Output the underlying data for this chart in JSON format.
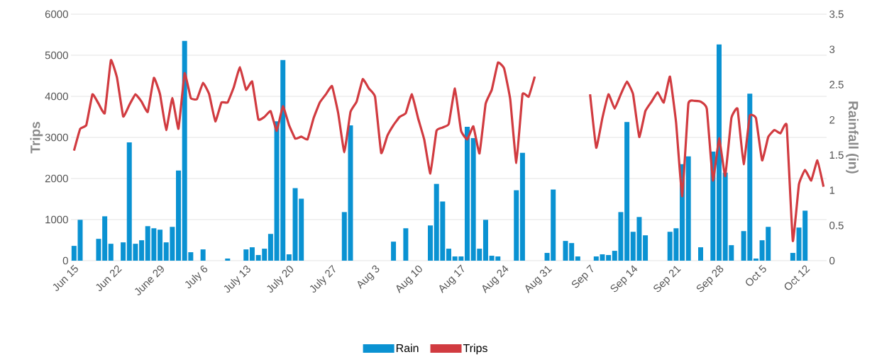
{
  "chart_data": {
    "type": "line",
    "ylabel": "Trips",
    "y2label": "Rainfall (in)",
    "categories": [
      "Jun 15",
      null,
      null,
      null,
      null,
      null,
      null,
      "Jun 22",
      null,
      null,
      null,
      null,
      null,
      null,
      "June 29",
      null,
      null,
      null,
      null,
      null,
      null,
      "July 6",
      null,
      null,
      null,
      null,
      null,
      null,
      "July 13",
      null,
      null,
      null,
      null,
      null,
      null,
      "July 20",
      null,
      null,
      null,
      null,
      null,
      null,
      "July 27",
      null,
      null,
      null,
      null,
      null,
      null,
      "Aug 3",
      null,
      null,
      null,
      null,
      null,
      null,
      "Aug 10",
      null,
      null,
      null,
      null,
      null,
      null,
      "Aug 17",
      null,
      null,
      null,
      null,
      null,
      null,
      "Aug 24",
      null,
      null,
      null,
      null,
      null,
      null,
      "Aug 31",
      null,
      null,
      null,
      null,
      null,
      null,
      "Sep 7",
      null,
      null,
      null,
      null,
      null,
      null,
      "Sep 14",
      null,
      null,
      null,
      null,
      null,
      null,
      "Sep 21",
      null,
      null,
      null,
      null,
      null,
      null,
      "Sep 28",
      null,
      null,
      null,
      null,
      null,
      null,
      "Oct 5",
      null,
      null,
      null,
      null,
      null,
      null,
      "Oct 12",
      null,
      null,
      null
    ],
    "series": [
      {
        "name": "Rain",
        "type": "bar",
        "axis": "y2",
        "color": "#0a92d2",
        "values": [
          0.21,
          0.58,
          0,
          0,
          0.31,
          0.63,
          0.24,
          0,
          0.26,
          1.68,
          0.24,
          0.29,
          0.49,
          0.46,
          0.44,
          0.26,
          0.48,
          1.28,
          3.12,
          0.12,
          0,
          0.16,
          0,
          0,
          0,
          0.03,
          0,
          0,
          0.16,
          0.19,
          0.08,
          0.17,
          0.38,
          1.98,
          2.85,
          0.09,
          1.03,
          0.88,
          0,
          0,
          0,
          0,
          0,
          0,
          0.69,
          1.92,
          0,
          0,
          0,
          0,
          0,
          0,
          0.27,
          0,
          0.46,
          0,
          0,
          0,
          0.5,
          1.09,
          0.84,
          0.17,
          0.06,
          0.06,
          1.9,
          1.74,
          0.17,
          0.58,
          0.07,
          0.06,
          0,
          0,
          1.0,
          1.53,
          0,
          0,
          0,
          0.11,
          1.01,
          0,
          0.28,
          0.25,
          0.06,
          0,
          0,
          0.06,
          0.09,
          0.08,
          0.14,
          0.69,
          1.97,
          0.41,
          0.62,
          0.36,
          0,
          0,
          0,
          0.41,
          0.46,
          1.37,
          1.48,
          0,
          0.19,
          0,
          1.55,
          3.07,
          1.25,
          0.22,
          0,
          0.42,
          2.37,
          0.03,
          0.29,
          0.48,
          0,
          0,
          0,
          0.11,
          0.47,
          0.71,
          0,
          0,
          0
        ]
      },
      {
        "name": "Trips",
        "color": "#d13b40",
        "values": [
          2680,
          3210,
          3300,
          4050,
          3820,
          3590,
          4880,
          4450,
          3510,
          3790,
          4050,
          3870,
          3620,
          4450,
          4050,
          3180,
          3960,
          3210,
          4560,
          3960,
          3930,
          4330,
          4050,
          3390,
          3850,
          3850,
          4220,
          4710,
          4160,
          4360,
          3440,
          3500,
          3640,
          3160,
          3760,
          3300,
          2970,
          3020,
          2950,
          3470,
          3850,
          4050,
          4250,
          3590,
          2640,
          3620,
          3870,
          4420,
          4190,
          3990,
          2620,
          3040,
          3300,
          3500,
          3590,
          4050,
          3470,
          2950,
          2120,
          3160,
          3240,
          3330,
          4190,
          3160,
          2950,
          3270,
          2610,
          3820,
          4160,
          4820,
          4680,
          3930,
          2380,
          4050,
          3990,
          4480,
          null,
          null,
          null,
          null,
          null,
          null,
          null,
          null,
          4050,
          2750,
          3470,
          4050,
          3700,
          4050,
          4360,
          4050,
          3010,
          3640,
          3870,
          4100,
          3850,
          4480,
          3360,
          1570,
          3820,
          3890,
          3870,
          3700,
          1950,
          2980,
          2060,
          3470,
          3700,
          2350,
          3530,
          3470,
          2440,
          3010,
          3180,
          3100,
          3300,
          480,
          1860,
          2210,
          1950,
          2440,
          1800
        ]
      }
    ],
    "ylim": [
      0,
      6000
    ],
    "yticks": [
      0,
      1000,
      2000,
      3000,
      4000,
      5000,
      6000
    ],
    "y2lim": [
      0,
      3.5
    ],
    "y2ticks": [
      0,
      0.5,
      1,
      1.5,
      2,
      2.5,
      3,
      3.5
    ],
    "grid": "y",
    "legend": "bottom"
  }
}
